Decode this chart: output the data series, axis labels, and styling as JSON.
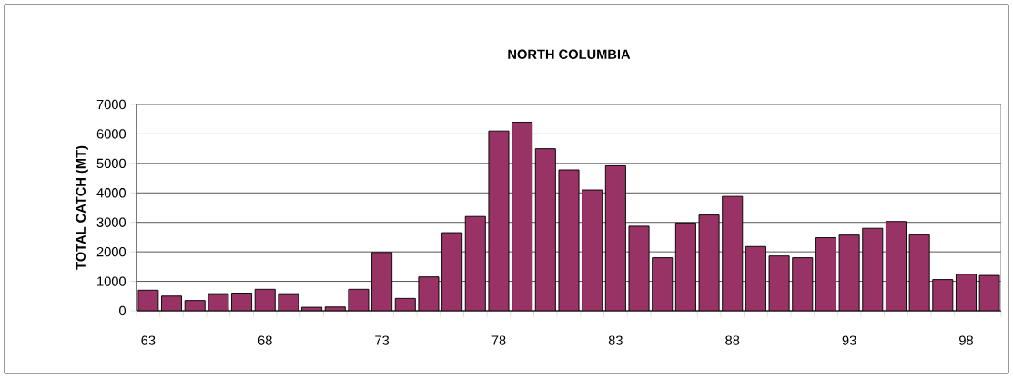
{
  "chart_data": {
    "type": "bar",
    "title": "NORTH COLUMBIA",
    "ylabel": "TOTAL CATCH (MT)",
    "categories": [
      "63",
      null,
      null,
      null,
      null,
      "68",
      null,
      null,
      null,
      null,
      "73",
      null,
      null,
      null,
      null,
      "78",
      null,
      null,
      null,
      null,
      "83",
      null,
      null,
      null,
      null,
      "88",
      null,
      null,
      null,
      null,
      "93",
      null,
      null,
      null,
      null,
      "98",
      null
    ],
    "values": [
      700,
      500,
      350,
      550,
      570,
      730,
      550,
      120,
      130,
      730,
      1980,
      420,
      1150,
      2650,
      3200,
      6100,
      6400,
      5500,
      4780,
      4100,
      4920,
      2870,
      1800,
      2980,
      3250,
      3880,
      2180,
      1860,
      1800,
      2480,
      2570,
      2800,
      3030,
      2580,
      1060,
      1240,
      1200
    ],
    "color": "#993366",
    "ylim": [
      0,
      7000
    ],
    "yticks": [
      0,
      1000,
      2000,
      3000,
      4000,
      5000,
      6000,
      7000
    ],
    "grid": "y"
  }
}
